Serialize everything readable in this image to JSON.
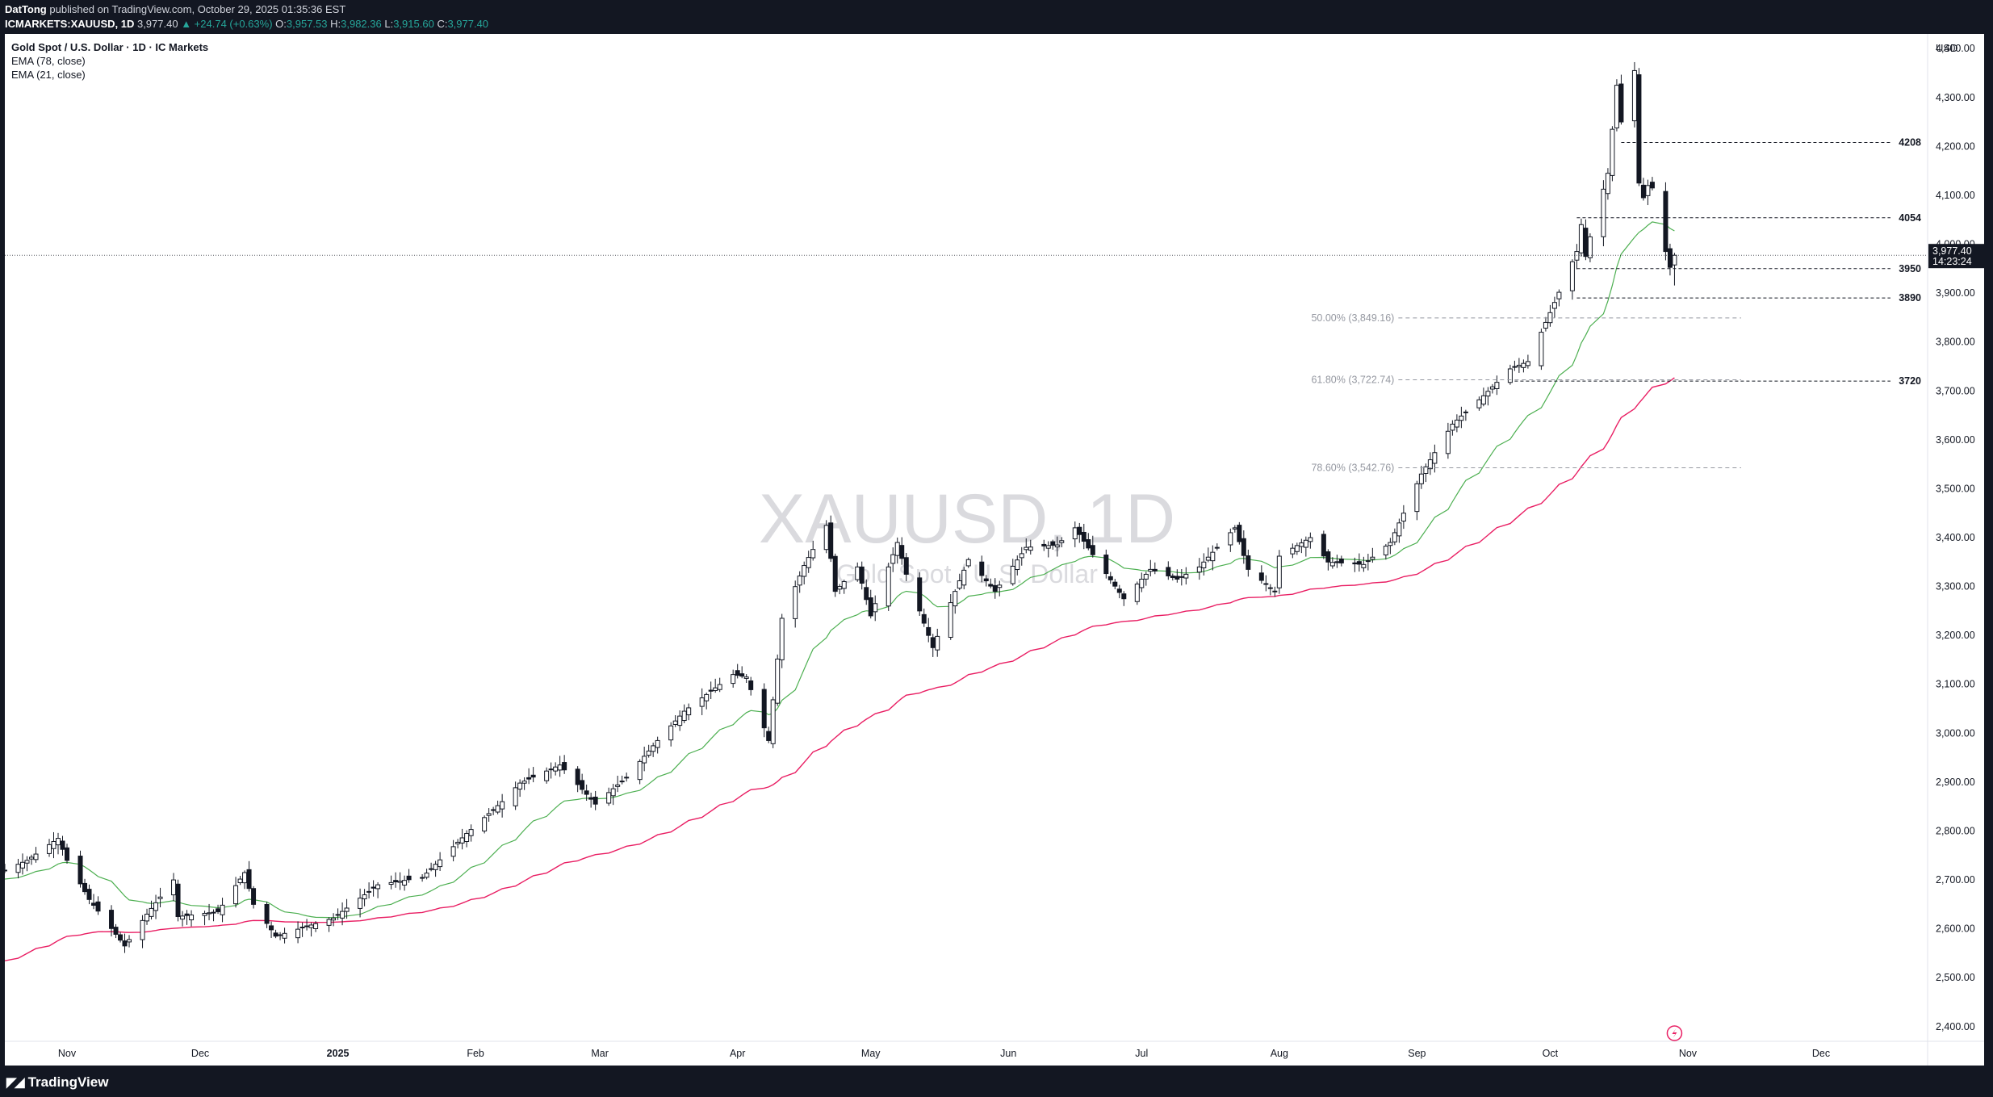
{
  "header": {
    "author": "DatTong",
    "published": "published on TradingView.com, October 29, 2025 01:35:36 EST",
    "symbol": "ICMARKETS:XAUUSD, 1D",
    "last": "3,977.40",
    "change": "▲ +24.74 (+0.63%)",
    "open_label": "O:",
    "open": "3,957.53",
    "high_label": "H:",
    "high": "3,982.36",
    "low_label": "L:",
    "low": "3,915.60",
    "close_label": "C:",
    "close": "3,977.40"
  },
  "legend": {
    "title": "Gold Spot / U.S. Dollar · 1D · IC Markets",
    "ema_slow": "EMA (78, close)",
    "ema_fast": "EMA (21, close)"
  },
  "footer": {
    "brand": "TradingView"
  },
  "chart_data": {
    "type": "candlestick",
    "currency": "USD",
    "watermark": "XAUUSD, 1D",
    "watermark_sub": "Gold Spot / U.S. Dollar",
    "ylim": [
      2370,
      4430
    ],
    "yticks": [
      2400,
      2500,
      2600,
      2700,
      2800,
      2900,
      3000,
      3100,
      3200,
      3300,
      3400,
      3500,
      3600,
      3700,
      3800,
      3900,
      4000,
      4100,
      4200,
      4300,
      4400
    ],
    "xlim": [
      "2024-10-18",
      "2025-12-25"
    ],
    "xticks": [
      {
        "date": "2024-11-01",
        "label": "Nov"
      },
      {
        "date": "2024-12-01",
        "label": "Dec"
      },
      {
        "date": "2025-01-01",
        "label": "2025",
        "bold": true
      },
      {
        "date": "2025-02-01",
        "label": "Feb"
      },
      {
        "date": "2025-03-01",
        "label": "Mar"
      },
      {
        "date": "2025-04-01",
        "label": "Apr"
      },
      {
        "date": "2025-05-01",
        "label": "May"
      },
      {
        "date": "2025-06-01",
        "label": "Jun"
      },
      {
        "date": "2025-07-01",
        "label": "Jul"
      },
      {
        "date": "2025-08-01",
        "label": "Aug"
      },
      {
        "date": "2025-09-01",
        "label": "Sep"
      },
      {
        "date": "2025-10-01",
        "label": "Oct"
      },
      {
        "date": "2025-11-01",
        "label": "Nov"
      },
      {
        "date": "2025-12-01",
        "label": "Dec"
      }
    ],
    "price_label": {
      "value": 3977.4,
      "text": "3,977.40",
      "countdown": "14:23:24"
    },
    "levels": [
      {
        "value": 4208,
        "label": "4208",
        "from": "2025-10-17"
      },
      {
        "value": 4054,
        "label": "4054",
        "from": "2025-10-07"
      },
      {
        "value": 3950,
        "label": "3950",
        "from": "2025-10-07"
      },
      {
        "value": 3890,
        "label": "3890",
        "from": "2025-10-07"
      },
      {
        "value": 3720,
        "label": "3720",
        "from": "2025-09-23"
      }
    ],
    "fib": [
      {
        "value": 3849.16,
        "label": "50.00% (3,849.16)"
      },
      {
        "value": 3722.74,
        "label": "61.80% (3,722.74)"
      },
      {
        "value": 3542.76,
        "label": "78.60% (3,542.76)"
      }
    ],
    "fib_range": [
      "2025-08-06",
      "2025-11-13"
    ],
    "ema_fast_color": "#4caf50",
    "ema_slow_color": "#e91e63",
    "ema_fast_name": "EMA (21, close)",
    "ema_slow_name": "EMA (78, close)",
    "close_anchors": [
      [
        "2024-10-18",
        2720
      ],
      [
        "2024-10-23",
        2740
      ],
      [
        "2024-10-30",
        2785
      ],
      [
        "2024-11-01",
        2740
      ],
      [
        "2024-11-06",
        2660
      ],
      [
        "2024-11-14",
        2565
      ],
      [
        "2024-11-19",
        2630
      ],
      [
        "2024-11-25",
        2700
      ],
      [
        "2024-11-26",
        2625
      ],
      [
        "2024-12-05",
        2635
      ],
      [
        "2024-12-11",
        2715
      ],
      [
        "2024-12-13",
        2650
      ],
      [
        "2024-12-18",
        2585
      ],
      [
        "2024-12-31",
        2622
      ],
      [
        "2025-01-10",
        2690
      ],
      [
        "2025-01-20",
        2705
      ],
      [
        "2025-01-30",
        2795
      ],
      [
        "2025-02-07",
        2860
      ],
      [
        "2025-02-11",
        2898
      ],
      [
        "2025-02-20",
        2935
      ],
      [
        "2025-02-28",
        2855
      ],
      [
        "2025-03-07",
        2910
      ],
      [
        "2025-03-14",
        2985
      ],
      [
        "2025-03-20",
        3045
      ],
      [
        "2025-03-31",
        3120
      ],
      [
        "2025-04-03",
        3115
      ],
      [
        "2025-04-08",
        2985
      ],
      [
        "2025-04-11",
        3235
      ],
      [
        "2025-04-16",
        3343
      ],
      [
        "2025-04-21",
        3425
      ],
      [
        "2025-04-23",
        3290
      ],
      [
        "2025-04-28",
        3340
      ],
      [
        "2025-05-01",
        3240
      ],
      [
        "2025-05-07",
        3390
      ],
      [
        "2025-05-09",
        3325
      ],
      [
        "2025-05-15",
        3175
      ],
      [
        "2025-05-20",
        3290
      ],
      [
        "2025-05-23",
        3355
      ],
      [
        "2025-05-29",
        3290
      ],
      [
        "2025-06-05",
        3380
      ],
      [
        "2025-06-12",
        3385
      ],
      [
        "2025-06-16",
        3420
      ],
      [
        "2025-06-20",
        3365
      ],
      [
        "2025-06-27",
        3275
      ],
      [
        "2025-07-03",
        3335
      ],
      [
        "2025-07-09",
        3315
      ],
      [
        "2025-07-14",
        3340
      ],
      [
        "2025-07-22",
        3420
      ],
      [
        "2025-07-25",
        3335
      ],
      [
        "2025-07-31",
        3290
      ],
      [
        "2025-08-01",
        3362
      ],
      [
        "2025-08-08",
        3400
      ],
      [
        "2025-08-12",
        3350
      ],
      [
        "2025-08-20",
        3345
      ],
      [
        "2025-08-26",
        3390
      ],
      [
        "2025-09-02",
        3530
      ],
      [
        "2025-09-09",
        3632
      ],
      [
        "2025-09-16",
        3690
      ],
      [
        "2025-09-22",
        3745
      ],
      [
        "2025-09-26",
        3760
      ],
      [
        "2025-10-01",
        3860
      ],
      [
        "2025-10-07",
        3985
      ],
      [
        "2025-10-08",
        4040
      ],
      [
        "2025-10-09",
        3975
      ],
      [
        "2025-10-10",
        4015
      ],
      [
        "2025-10-14",
        4145
      ],
      [
        "2025-10-16",
        4325
      ],
      [
        "2025-10-17",
        4250
      ],
      [
        "2025-10-20",
        4355
      ],
      [
        "2025-10-21",
        4125
      ],
      [
        "2025-10-22",
        4095
      ],
      [
        "2025-10-23",
        4120
      ],
      [
        "2025-10-24",
        4115
      ],
      [
        "2025-10-27",
        3985
      ],
      [
        "2025-10-28",
        3952.66
      ],
      [
        "2025-10-29",
        3977.4
      ]
    ]
  }
}
